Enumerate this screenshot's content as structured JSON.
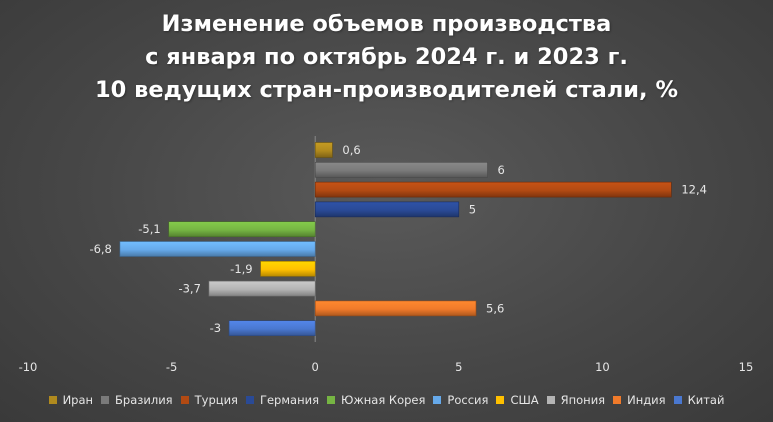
{
  "title_lines": [
    "Изменение объемов производства",
    "с января по октябрь 2024 г. и 2023 г.",
    "10 ведущих стран-производителей стали, %"
  ],
  "chart_data": {
    "type": "bar",
    "orientation": "horizontal",
    "title": "Изменение объемов производства с января по октябрь 2024 г. и 2023 г. 10 ведущих стран-производителей стали, %",
    "xlim": [
      -10,
      15
    ],
    "xticks": [
      "-10",
      "-5",
      "0",
      "5",
      "10",
      "15"
    ],
    "grid": false,
    "legend_position": "bottom",
    "series": [
      {
        "name": "Иран",
        "value": 0.6,
        "label": "0,6",
        "color": "#b08a1e"
      },
      {
        "name": "Бразилия",
        "value": 6,
        "label": "6",
        "color": "#7a7a7a"
      },
      {
        "name": "Турция",
        "value": 12.4,
        "label": "12,4",
        "color": "#b24a13"
      },
      {
        "name": "Германия",
        "value": 5,
        "label": "5",
        "color": "#2a4a96"
      },
      {
        "name": "Южная Корея",
        "value": -5.1,
        "label": "-5,1",
        "color": "#76b543"
      },
      {
        "name": "Россия",
        "value": -6.8,
        "label": "-6,8",
        "color": "#66a9ea"
      },
      {
        "name": "США",
        "value": -1.9,
        "label": "-1,9",
        "color": "#ffc000"
      },
      {
        "name": "Япония",
        "value": -3.7,
        "label": "-3,7",
        "color": "#b4b4b4"
      },
      {
        "name": "Индия",
        "value": 5.6,
        "label": "5,6",
        "color": "#f07a2a"
      },
      {
        "name": "Китай",
        "value": -3,
        "label": "-3",
        "color": "#4a78d0"
      }
    ]
  }
}
